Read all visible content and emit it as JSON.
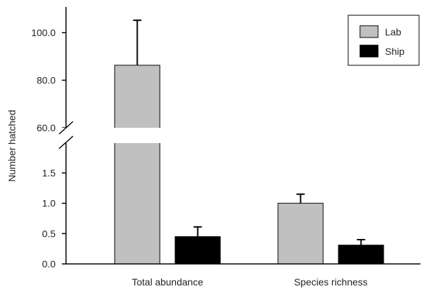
{
  "chart_data": {
    "type": "bar",
    "ylabel": "Number hatched",
    "categories": [
      "Total abundance",
      "Species richness"
    ],
    "series": [
      {
        "name": "Lab",
        "color": "#c0c0c0",
        "values": [
          86.3,
          1.0
        ],
        "errors": [
          18.9,
          0.15
        ]
      },
      {
        "name": "Ship",
        "color": "#000000",
        "values": [
          0.45,
          0.31
        ],
        "errors": [
          0.16,
          0.09
        ]
      }
    ],
    "y_axis": {
      "broken": true,
      "lower_segment": {
        "ylim": [
          0,
          1.5
        ],
        "ticks": [
          "0.0",
          "0.5",
          "1.0",
          "1.5"
        ]
      },
      "upper_segment": {
        "ylim": [
          60,
          100
        ],
        "ticks": [
          "60.0",
          "80.0",
          "100.0"
        ]
      }
    },
    "legend": {
      "position": "top-right",
      "entries": [
        "Lab",
        "Ship"
      ]
    }
  }
}
